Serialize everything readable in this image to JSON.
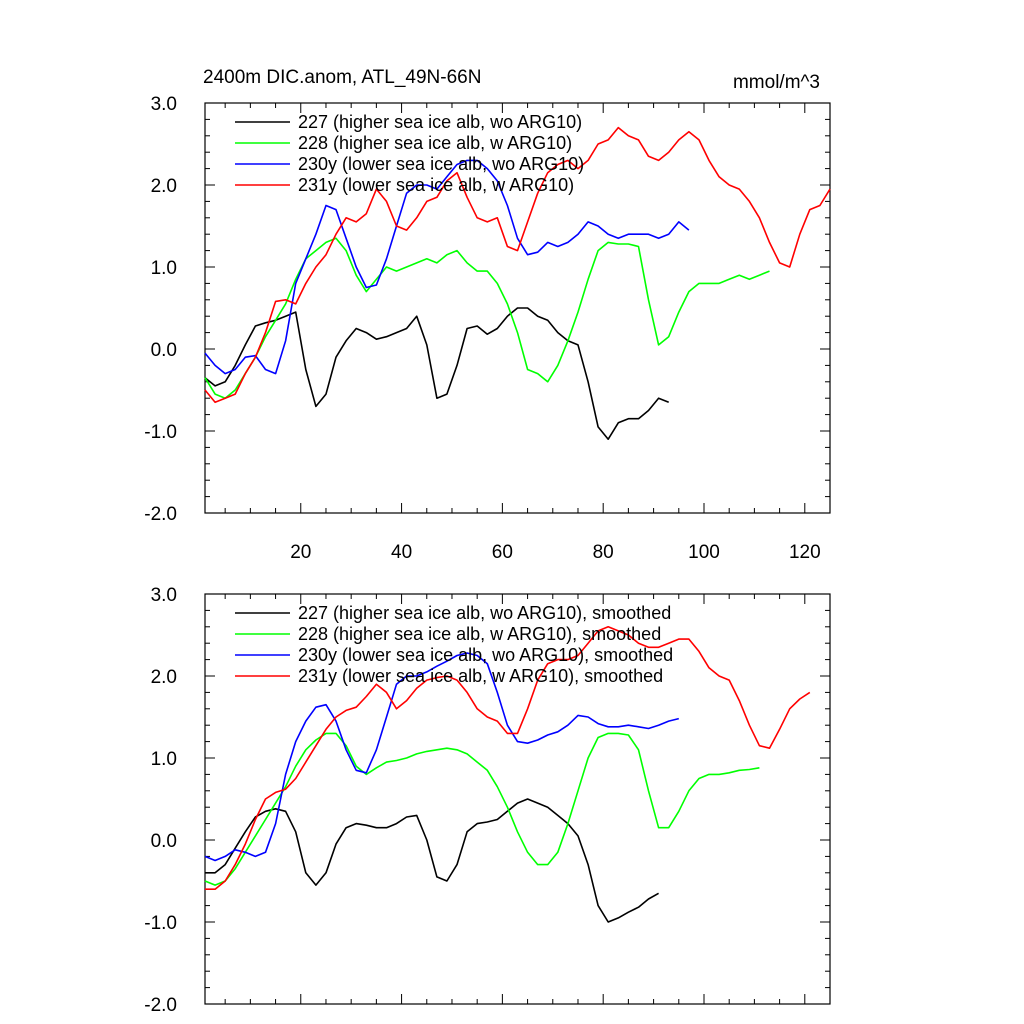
{
  "chart_data": [
    {
      "type": "line",
      "title": "2400m DIC.anom, ATL_49N-66N",
      "units": "mmol/m^3",
      "xlabel": "",
      "ylabel": "",
      "xlim": [
        1,
        125
      ],
      "ylim": [
        -2.0,
        3.0
      ],
      "x_ticks": [
        "20",
        "40",
        "60",
        "80",
        "100",
        "120"
      ],
      "y_ticks": [
        "3.0",
        "2.0",
        "1.0",
        "0.0",
        "-1.0",
        "-2.0"
      ],
      "grid": false,
      "legend_position": "top-left",
      "series": [
        {
          "name": "227 (higher sea ice alb, wo ARG10)",
          "color": "#000000",
          "x": [
            1,
            3,
            5,
            7,
            9,
            11,
            13,
            15,
            17,
            19,
            21,
            23,
            25,
            27,
            29,
            31,
            33,
            35,
            37,
            39,
            41,
            43,
            45,
            47,
            49,
            51,
            53,
            55,
            57,
            59,
            61,
            63,
            65,
            67,
            69,
            71,
            73,
            75,
            77,
            79,
            81,
            83,
            85,
            87,
            89,
            91,
            93
          ],
          "y": [
            -0.35,
            -0.45,
            -0.4,
            -0.2,
            0.05,
            0.28,
            0.32,
            0.35,
            0.4,
            0.45,
            -0.25,
            -0.7,
            -0.55,
            -0.1,
            0.1,
            0.25,
            0.2,
            0.12,
            0.15,
            0.2,
            0.25,
            0.4,
            0.05,
            -0.6,
            -0.55,
            -0.2,
            0.25,
            0.28,
            0.18,
            0.25,
            0.4,
            0.5,
            0.5,
            0.4,
            0.35,
            0.2,
            0.1,
            0.05,
            -0.4,
            -0.95,
            -1.1,
            -0.9,
            -0.85,
            -0.85,
            -0.75,
            -0.6,
            -0.65
          ]
        },
        {
          "name": "228 (higher sea ice alb, w ARG10)",
          "color": "#00ff00",
          "x": [
            1,
            3,
            5,
            7,
            9,
            11,
            13,
            15,
            17,
            19,
            21,
            23,
            25,
            27,
            29,
            31,
            33,
            35,
            37,
            39,
            41,
            43,
            45,
            47,
            49,
            51,
            53,
            55,
            57,
            59,
            61,
            63,
            65,
            67,
            69,
            71,
            73,
            75,
            77,
            79,
            81,
            83,
            85,
            87,
            89,
            91,
            93,
            95,
            97,
            99,
            101,
            103,
            105,
            107,
            109,
            111,
            113
          ],
          "y": [
            -0.35,
            -0.55,
            -0.6,
            -0.5,
            -0.3,
            -0.1,
            0.15,
            0.35,
            0.55,
            0.85,
            1.1,
            1.2,
            1.3,
            1.35,
            1.2,
            0.9,
            0.7,
            0.85,
            1.0,
            0.95,
            1.0,
            1.05,
            1.1,
            1.05,
            1.15,
            1.2,
            1.05,
            0.95,
            0.95,
            0.8,
            0.55,
            0.2,
            -0.25,
            -0.3,
            -0.4,
            -0.2,
            0.1,
            0.45,
            0.85,
            1.2,
            1.3,
            1.28,
            1.28,
            1.25,
            0.6,
            0.05,
            0.15,
            0.45,
            0.7,
            0.8,
            0.8,
            0.8,
            0.85,
            0.9,
            0.85,
            0.9,
            0.95
          ]
        },
        {
          "name": "230y (lower sea ice alb, wo ARG10)",
          "color": "#0000ff",
          "x": [
            1,
            3,
            5,
            7,
            9,
            11,
            13,
            15,
            17,
            19,
            21,
            23,
            25,
            27,
            29,
            31,
            33,
            35,
            37,
            39,
            41,
            43,
            45,
            47,
            49,
            51,
            53,
            55,
            57,
            59,
            61,
            63,
            65,
            67,
            69,
            71,
            73,
            75,
            77,
            79,
            81,
            83,
            85,
            87,
            89,
            91,
            93,
            95,
            97
          ],
          "y": [
            -0.05,
            -0.2,
            -0.3,
            -0.25,
            -0.1,
            -0.08,
            -0.25,
            -0.3,
            0.1,
            0.8,
            1.1,
            1.4,
            1.75,
            1.7,
            1.35,
            1.0,
            0.75,
            0.78,
            1.1,
            1.5,
            1.9,
            2.0,
            2.0,
            1.95,
            2.1,
            2.25,
            2.3,
            2.3,
            2.2,
            2.05,
            1.75,
            1.35,
            1.15,
            1.18,
            1.3,
            1.25,
            1.3,
            1.4,
            1.55,
            1.5,
            1.4,
            1.35,
            1.4,
            1.4,
            1.4,
            1.35,
            1.4,
            1.55,
            1.45
          ]
        },
        {
          "name": "231y (lower sea ice alb, w ARG10)",
          "color": "#ff0000",
          "x": [
            1,
            3,
            5,
            7,
            9,
            11,
            13,
            15,
            17,
            19,
            21,
            23,
            25,
            27,
            29,
            31,
            33,
            35,
            37,
            39,
            41,
            43,
            45,
            47,
            49,
            51,
            53,
            55,
            57,
            59,
            61,
            63,
            65,
            67,
            69,
            71,
            73,
            75,
            77,
            79,
            81,
            83,
            85,
            87,
            89,
            91,
            93,
            95,
            97,
            99,
            101,
            103,
            105,
            107,
            109,
            111,
            113,
            115,
            117,
            119,
            121,
            123,
            125
          ],
          "y": [
            -0.5,
            -0.65,
            -0.6,
            -0.55,
            -0.3,
            -0.1,
            0.2,
            0.58,
            0.6,
            0.55,
            0.8,
            1.0,
            1.15,
            1.4,
            1.6,
            1.55,
            1.65,
            1.95,
            1.8,
            1.5,
            1.45,
            1.6,
            1.8,
            1.85,
            2.05,
            2.15,
            1.85,
            1.6,
            1.55,
            1.6,
            1.25,
            1.2,
            1.55,
            1.9,
            2.15,
            2.25,
            2.3,
            2.2,
            2.3,
            2.5,
            2.55,
            2.7,
            2.6,
            2.55,
            2.35,
            2.3,
            2.4,
            2.55,
            2.65,
            2.55,
            2.3,
            2.1,
            2.0,
            1.95,
            1.8,
            1.6,
            1.3,
            1.05,
            1.0,
            1.4,
            1.7,
            1.75,
            1.95
          ]
        }
      ]
    },
    {
      "type": "line",
      "title": "",
      "xlim": [
        1,
        125
      ],
      "ylim": [
        -2.0,
        3.0
      ],
      "y_ticks": [
        "3.0",
        "2.0",
        "1.0",
        "0.0",
        "-1.0",
        "-2.0"
      ],
      "grid": false,
      "legend_position": "top-left",
      "series": [
        {
          "name": "227 (higher sea ice alb, wo ARG10), smoothed",
          "color": "#000000",
          "x": [
            1,
            3,
            5,
            7,
            9,
            11,
            13,
            15,
            17,
            19,
            21,
            23,
            25,
            27,
            29,
            31,
            33,
            35,
            37,
            39,
            41,
            43,
            45,
            47,
            49,
            51,
            53,
            55,
            57,
            59,
            61,
            63,
            65,
            67,
            69,
            71,
            73,
            75,
            77,
            79,
            81,
            83,
            85,
            87,
            89,
            91
          ],
          "y": [
            -0.4,
            -0.4,
            -0.3,
            -0.1,
            0.1,
            0.28,
            0.35,
            0.38,
            0.35,
            0.1,
            -0.4,
            -0.55,
            -0.4,
            -0.05,
            0.15,
            0.2,
            0.18,
            0.15,
            0.15,
            0.2,
            0.28,
            0.3,
            0.0,
            -0.45,
            -0.5,
            -0.3,
            0.1,
            0.2,
            0.22,
            0.25,
            0.35,
            0.45,
            0.5,
            0.45,
            0.4,
            0.3,
            0.2,
            0.05,
            -0.3,
            -0.8,
            -1.0,
            -0.95,
            -0.88,
            -0.82,
            -0.72,
            -0.65
          ]
        },
        {
          "name": "228 (higher sea ice alb, w ARG10), smoothed",
          "color": "#00ff00",
          "x": [
            1,
            3,
            5,
            7,
            9,
            11,
            13,
            15,
            17,
            19,
            21,
            23,
            25,
            27,
            29,
            31,
            33,
            35,
            37,
            39,
            41,
            43,
            45,
            47,
            49,
            51,
            53,
            55,
            57,
            59,
            61,
            63,
            65,
            67,
            69,
            71,
            73,
            75,
            77,
            79,
            81,
            83,
            85,
            87,
            89,
            91,
            93,
            95,
            97,
            99,
            101,
            103,
            105,
            107,
            109,
            111
          ],
          "y": [
            -0.5,
            -0.55,
            -0.5,
            -0.35,
            -0.15,
            0.05,
            0.25,
            0.45,
            0.65,
            0.9,
            1.1,
            1.22,
            1.3,
            1.3,
            1.15,
            0.9,
            0.8,
            0.88,
            0.95,
            0.97,
            1.0,
            1.05,
            1.08,
            1.1,
            1.12,
            1.1,
            1.05,
            0.95,
            0.85,
            0.65,
            0.4,
            0.1,
            -0.15,
            -0.3,
            -0.3,
            -0.15,
            0.2,
            0.6,
            1.0,
            1.25,
            1.3,
            1.3,
            1.28,
            1.1,
            0.6,
            0.15,
            0.15,
            0.35,
            0.6,
            0.75,
            0.8,
            0.8,
            0.82,
            0.85,
            0.86,
            0.88
          ]
        },
        {
          "name": "230y (lower sea ice alb, wo ARG10), smoothed",
          "color": "#0000ff",
          "x": [
            1,
            3,
            5,
            7,
            9,
            11,
            13,
            15,
            17,
            19,
            21,
            23,
            25,
            27,
            29,
            31,
            33,
            35,
            37,
            39,
            41,
            43,
            45,
            47,
            49,
            51,
            53,
            55,
            57,
            59,
            61,
            63,
            65,
            67,
            69,
            71,
            73,
            75,
            77,
            79,
            81,
            83,
            85,
            87,
            89,
            91,
            93,
            95
          ],
          "y": [
            -0.2,
            -0.25,
            -0.2,
            -0.12,
            -0.15,
            -0.2,
            -0.15,
            0.2,
            0.8,
            1.2,
            1.45,
            1.62,
            1.65,
            1.45,
            1.1,
            0.85,
            0.82,
            1.1,
            1.5,
            1.9,
            2.0,
            2.0,
            2.05,
            2.12,
            2.18,
            2.25,
            2.28,
            2.25,
            2.15,
            1.8,
            1.4,
            1.2,
            1.18,
            1.22,
            1.28,
            1.32,
            1.4,
            1.52,
            1.5,
            1.42,
            1.38,
            1.38,
            1.4,
            1.38,
            1.36,
            1.4,
            1.45,
            1.48
          ]
        },
        {
          "name": "231y (lower sea ice alb, w ARG10), smoothed",
          "color": "#ff0000",
          "x": [
            1,
            3,
            5,
            7,
            9,
            11,
            13,
            15,
            17,
            19,
            21,
            23,
            25,
            27,
            29,
            31,
            33,
            35,
            37,
            39,
            41,
            43,
            45,
            47,
            49,
            51,
            53,
            55,
            57,
            59,
            61,
            63,
            65,
            67,
            69,
            71,
            73,
            75,
            77,
            79,
            81,
            83,
            85,
            87,
            89,
            91,
            93,
            95,
            97,
            99,
            101,
            103,
            105,
            107,
            109,
            111,
            113,
            115,
            117,
            119,
            121
          ],
          "y": [
            -0.6,
            -0.6,
            -0.5,
            -0.3,
            -0.05,
            0.25,
            0.5,
            0.58,
            0.62,
            0.75,
            0.95,
            1.15,
            1.35,
            1.5,
            1.58,
            1.62,
            1.75,
            1.9,
            1.8,
            1.6,
            1.7,
            1.85,
            1.95,
            1.98,
            2.0,
            1.95,
            1.8,
            1.6,
            1.5,
            1.45,
            1.3,
            1.3,
            1.6,
            1.95,
            2.15,
            2.2,
            2.2,
            2.25,
            2.4,
            2.55,
            2.6,
            2.55,
            2.5,
            2.4,
            2.35,
            2.35,
            2.4,
            2.45,
            2.45,
            2.3,
            2.1,
            2.0,
            1.95,
            1.7,
            1.4,
            1.15,
            1.12,
            1.35,
            1.6,
            1.72,
            1.8
          ]
        }
      ]
    }
  ]
}
